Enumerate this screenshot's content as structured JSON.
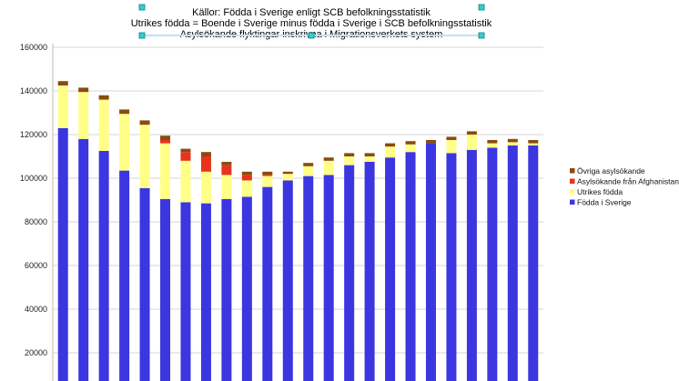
{
  "chart_data": {
    "type": "bar",
    "stacked": true,
    "title_lines": [
      "Källor: Födda i Sverige enligt SCB befolkningsstatistik",
      "Utrikes födda = Boende i Sverige minus födda i Sverige i SCB befolkningsstatistik",
      "Asylsökande flyktingar inskrivna i Migrationsverkets system"
    ],
    "xlabel": "",
    "ylabel": "",
    "ylim": [
      0,
      160000
    ],
    "yticks": [
      20000,
      40000,
      60000,
      80000,
      100000,
      120000,
      140000,
      160000
    ],
    "grid": true,
    "legend_position": "right",
    "series": [
      {
        "name": "Födda i Sverige",
        "color": "#3b36e0",
        "values": [
          123000,
          118000,
          112500,
          103500,
          95500,
          90500,
          89000,
          88500,
          90500,
          91500,
          96000,
          99000,
          101000,
          101500,
          106000,
          107500,
          109500,
          112000,
          116000,
          111500,
          113000,
          114000,
          115000,
          115000
        ]
      },
      {
        "name": "Utrikes födda",
        "color": "#ffff88",
        "values": [
          19500,
          21500,
          23500,
          26000,
          29000,
          25500,
          19000,
          14500,
          11000,
          7500,
          5000,
          3000,
          4500,
          6500,
          4000,
          2500,
          5000,
          3500,
          0,
          6000,
          7000,
          2000,
          1500,
          1000
        ]
      },
      {
        "name": "Asylsökande från Afghanistan",
        "color": "#e8331c",
        "values": [
          0,
          0,
          0,
          0,
          0,
          1500,
          4000,
          7000,
          4500,
          2500,
          500,
          0,
          0,
          0,
          0,
          0,
          0,
          0,
          0,
          0,
          0,
          0,
          0,
          0
        ]
      },
      {
        "name": "Övriga asylsökande",
        "color": "#8a4b10",
        "values": [
          2000,
          2000,
          2000,
          2000,
          2000,
          2000,
          1500,
          2000,
          1500,
          1500,
          1500,
          1000,
          1500,
          1500,
          1500,
          1500,
          1500,
          1500,
          1500,
          1500,
          1500,
          1500,
          1500,
          1500
        ]
      }
    ],
    "legend_order": [
      "Övriga asylsökande",
      "Asylsökande från Afghanistan",
      "Utrikes födda",
      "Födda i Sverige"
    ]
  }
}
